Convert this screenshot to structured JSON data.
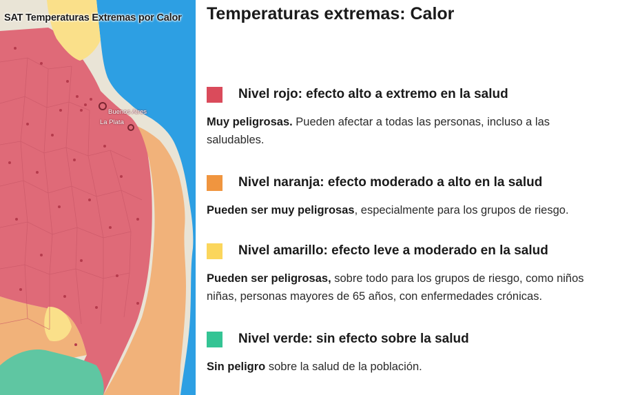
{
  "map": {
    "title": "SAT Temperaturas Extremas por Calor",
    "cities": [
      {
        "name": "Buenos Aires"
      },
      {
        "name": "La Plata"
      }
    ],
    "zone_colors": {
      "rojo": "#df6a78",
      "naranja": "#f1b27a",
      "amarillo": "#fae08a",
      "verde": "#5fc6a2",
      "agua": "#2d9fe3",
      "tierra": "#e9e4d6"
    }
  },
  "legend": {
    "title": "Temperaturas extremas: Calor",
    "levels": [
      {
        "color": "#da4b5b",
        "label": "Nivel rojo: efecto alto a extremo en la salud",
        "desc_bold": "Muy peligrosas.",
        "desc_line1": " Pueden afectar a todas las personas, incluso a las",
        "desc_line2": "saludables."
      },
      {
        "color": "#f0953f",
        "label": "Nivel naranja: efecto moderado a alto en la salud",
        "desc_bold": "Pueden ser muy peligrosas",
        "desc_line1": ", especialmente para los grupos de riesgo.",
        "desc_line2": ""
      },
      {
        "color": "#fbd65c",
        "label": "Nivel amarillo: efecto leve a moderado en la salud",
        "desc_bold": "Pueden ser peligrosas,",
        "desc_line1": " sobre todo para los grupos de riesgo, como niños",
        "desc_line2": "niñas, personas mayores de 65 años, con enfermedades crónicas."
      },
      {
        "color": "#34c494",
        "label": "Nivel verde: sin efecto sobre la salud",
        "desc_bold": "Sin peligro",
        "desc_line1": " sobre la salud de la población.",
        "desc_line2": ""
      }
    ]
  }
}
